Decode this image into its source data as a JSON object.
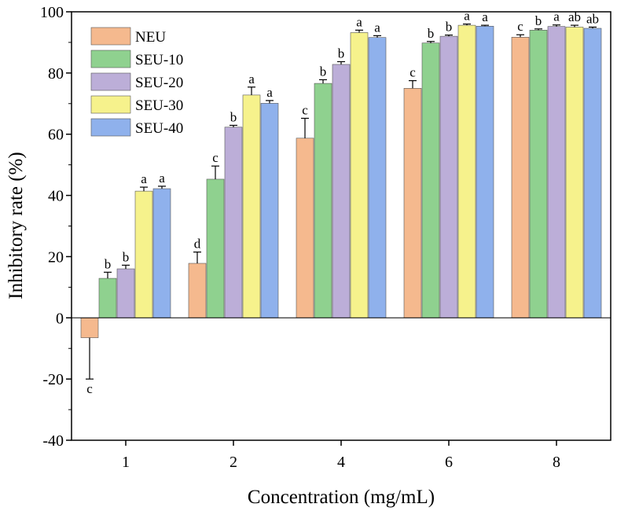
{
  "chart_data": {
    "type": "bar",
    "title": "",
    "xlabel": "Concentration (mg/mL)",
    "ylabel": "Inhibitory rate (%)",
    "ylim": [
      -40,
      100
    ],
    "yticks": [
      -40,
      -20,
      0,
      20,
      40,
      60,
      80,
      100
    ],
    "grid": false,
    "legend_position": "top-left",
    "categories": [
      "1",
      "2",
      "4",
      "6",
      "8"
    ],
    "series": [
      {
        "name": "NEU",
        "color": "#f5b98e",
        "values": [
          -6.5,
          17.8,
          58.7,
          75.0,
          91.7
        ],
        "errors": [
          13.5,
          3.7,
          6.5,
          2.5,
          0.8
        ],
        "labels": [
          "c",
          "d",
          "c",
          "c",
          "c"
        ]
      },
      {
        "name": "SEU-10",
        "color": "#8fd18f",
        "values": [
          12.9,
          45.3,
          76.6,
          89.8,
          94.0
        ],
        "errors": [
          2.0,
          4.3,
          1.2,
          0.5,
          0.4
        ],
        "labels": [
          "b",
          "c",
          "b",
          "b",
          "b"
        ]
      },
      {
        "name": "SEU-20",
        "color": "#bcaed8",
        "values": [
          16.0,
          62.3,
          82.8,
          92.0,
          95.2
        ],
        "errors": [
          1.2,
          0.6,
          0.9,
          0.4,
          0.5
        ],
        "labels": [
          "b",
          "b",
          "b",
          "b",
          "a"
        ]
      },
      {
        "name": "SEU-30",
        "color": "#f6f28c",
        "values": [
          41.4,
          72.8,
          93.2,
          95.6,
          95.0
        ],
        "errors": [
          1.3,
          2.6,
          0.8,
          0.4,
          0.6
        ],
        "labels": [
          "a",
          "a",
          "a",
          "a",
          "ab"
        ]
      },
      {
        "name": "SEU-40",
        "color": "#8fb1ec",
        "values": [
          42.2,
          70.1,
          91.6,
          95.3,
          94.6
        ],
        "errors": [
          0.8,
          0.9,
          0.6,
          0.3,
          0.4
        ],
        "labels": [
          "a",
          "a",
          "a",
          "a",
          "ab"
        ]
      }
    ]
  }
}
